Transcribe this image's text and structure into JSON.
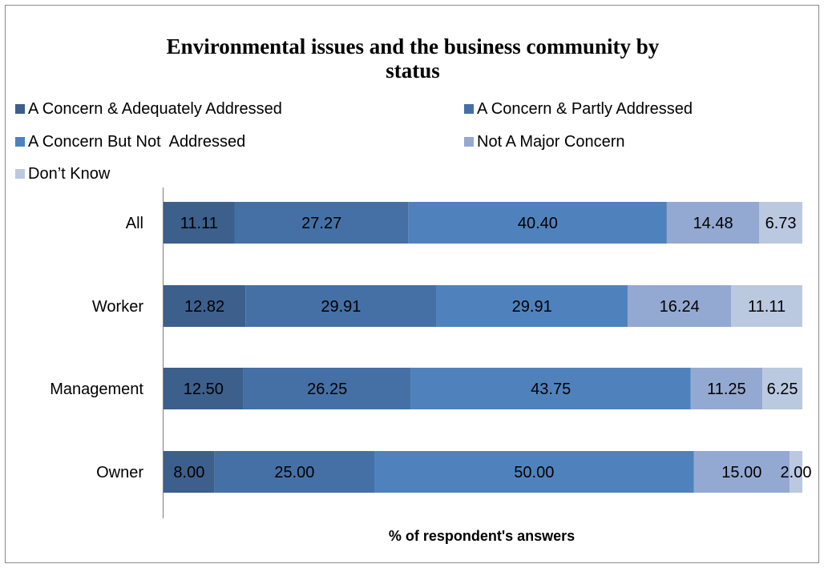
{
  "chart_data": {
    "type": "bar",
    "orientation": "horizontal",
    "stacked": true,
    "title_lines": [
      "Environmental issues and the business community by",
      "status"
    ],
    "xlabel": "% of respondent's answers",
    "ylabel": "",
    "categories": [
      "All",
      "Worker",
      "Management",
      "Owner"
    ],
    "xlim": [
      0,
      100
    ],
    "grid": false,
    "legend_position": "top",
    "series": [
      {
        "name": "A Concern & Adequately Addressed",
        "color": "#3c5f8c",
        "values": [
          11.11,
          12.82,
          12.5,
          8.0
        ],
        "labels": [
          "11.11",
          "12.82",
          "12.50",
          "8.00"
        ]
      },
      {
        "name": "A Concern & Partly Addressed",
        "color": "#4470a5",
        "values": [
          27.27,
          29.91,
          26.25,
          25.0
        ],
        "labels": [
          "27.27",
          "29.91",
          "26.25",
          "25.00"
        ]
      },
      {
        "name": "A Concern But Not  Addressed",
        "color": "#4f82bd",
        "values": [
          40.4,
          29.91,
          43.75,
          50.0
        ],
        "labels": [
          "40.40",
          "29.91",
          "43.75",
          "50.00"
        ]
      },
      {
        "name": "Not A Major Concern",
        "color": "#94a9d1",
        "values": [
          14.48,
          16.24,
          11.25,
          15.0
        ],
        "labels": [
          "14.48",
          "16.24",
          "11.25",
          "15.00"
        ]
      },
      {
        "name": "Don’t Know",
        "color": "#bac8e0",
        "values": [
          6.73,
          11.11,
          6.25,
          2.0
        ],
        "labels": [
          "6.73",
          "11.11",
          "6.25",
          "2.00"
        ]
      }
    ]
  }
}
